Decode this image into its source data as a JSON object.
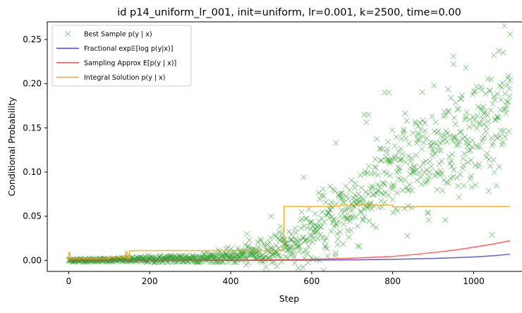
{
  "chart_data": {
    "type": "scatter",
    "title": "id p14_uniform_lr_001, init=uniform, lr=0.001, k=2500, time=0.00",
    "xlabel": "Step",
    "ylabel": "Conditional Probability",
    "xlim": [
      -53,
      1142
    ],
    "ylim": [
      -0.0125,
      0.27
    ],
    "xticks": [
      0,
      200,
      400,
      600,
      800,
      1000
    ],
    "yticks": [
      0.0,
      0.05,
      0.1,
      0.15,
      0.2,
      0.25
    ],
    "xtick_labels": [
      "0",
      "200",
      "400",
      "600",
      "800",
      "1000"
    ],
    "ytick_labels": [
      "0.00",
      "0.05",
      "0.10",
      "0.15",
      "0.20",
      "0.25"
    ],
    "grid": false,
    "legend_position": "upper-left",
    "legend": [
      {
        "label": "Best Sample p(y | x)",
        "kind": "marker",
        "color": "#2ca02c"
      },
      {
        "label": "Fractional exp𝔼[log p(y|x)]",
        "kind": "line",
        "color": "#4444cc"
      },
      {
        "label": "Sampling Approx E[p(y | x)]",
        "kind": "line",
        "color": "#ff4444"
      },
      {
        "label": "Integral Solution p(y | x)",
        "kind": "line",
        "color": "#ffa500"
      }
    ],
    "series": [
      {
        "kind": "scatter_envelope",
        "color": "#2ca02c",
        "x": [
          0,
          100,
          200,
          300,
          400,
          450,
          500,
          550,
          600,
          650,
          700,
          750,
          800,
          850,
          900,
          950,
          1000,
          1050,
          1090
        ],
        "center": [
          0.0,
          0.0005,
          0.001,
          0.002,
          0.004,
          0.007,
          0.011,
          0.018,
          0.028,
          0.045,
          0.062,
          0.078,
          0.095,
          0.11,
          0.125,
          0.138,
          0.148,
          0.158,
          0.165
        ],
        "spread": [
          0.001,
          0.001,
          0.002,
          0.003,
          0.004,
          0.006,
          0.009,
          0.012,
          0.017,
          0.021,
          0.024,
          0.026,
          0.028,
          0.03,
          0.03,
          0.031,
          0.031,
          0.032,
          0.033
        ],
        "highlights": [
          [
            1090,
            0.256
          ],
          [
            950,
            0.231
          ],
          [
            950,
            0.222
          ],
          [
            1050,
            0.232
          ],
          [
            780,
            0.19
          ],
          [
            790,
            0.19
          ],
          [
            730,
            0.165
          ],
          [
            740,
            0.165
          ],
          [
            660,
            0.133
          ],
          [
            580,
            0.094
          ],
          [
            500,
            0.05
          ],
          [
            440,
            0.03
          ]
        ]
      },
      {
        "kind": "line",
        "color": "#4444cc",
        "x": [
          0,
          200,
          400,
          600,
          700,
          800,
          900,
          950,
          1000,
          1050,
          1090
        ],
        "y": [
          0.0,
          0.0,
          0.0001,
          0.0003,
          0.0006,
          0.0012,
          0.0022,
          0.003,
          0.0039,
          0.0053,
          0.007
        ]
      },
      {
        "kind": "line",
        "color": "#ff4444",
        "x": [
          0,
          200,
          400,
          500,
          600,
          700,
          800,
          850,
          900,
          950,
          1000,
          1050,
          1090
        ],
        "y": [
          0.0,
          0.0,
          0.0002,
          0.0005,
          0.0011,
          0.0025,
          0.0045,
          0.0065,
          0.0088,
          0.0115,
          0.0148,
          0.0186,
          0.0222
        ]
      },
      {
        "kind": "line",
        "color": "#ffa500",
        "x": [
          0,
          0,
          3,
          3,
          100,
          100,
          140,
          140,
          145,
          145,
          150,
          150,
          160,
          160,
          530,
          530,
          532,
          532,
          670,
          670,
          800,
          800,
          860,
          860,
          865,
          865,
          1090
        ],
        "y": [
          0.0,
          0.009,
          0.009,
          0.002,
          0.002,
          0.0035,
          0.0035,
          0.0095,
          0.0095,
          0.002,
          0.002,
          0.0105,
          0.0105,
          0.011,
          0.011,
          0.034,
          0.034,
          0.061,
          0.061,
          0.0625,
          0.0625,
          0.0605,
          0.0605,
          0.061,
          0.061,
          0.061,
          0.061
        ]
      }
    ]
  }
}
